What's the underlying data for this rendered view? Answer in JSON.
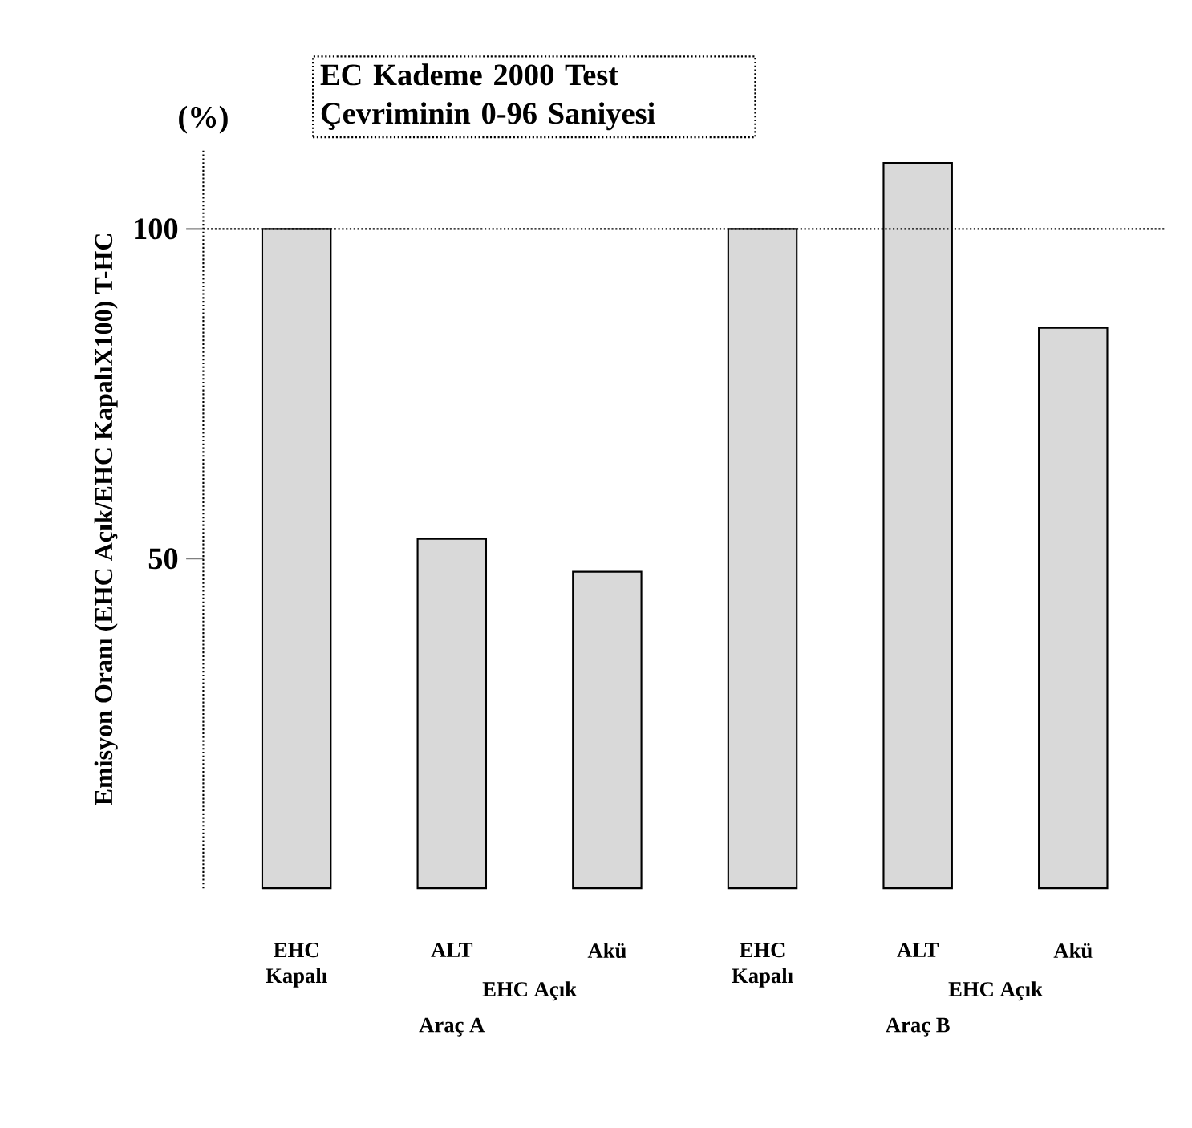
{
  "chart_data": {
    "type": "bar",
    "title": "EC Kademe 2000 Test Çevriminin 0-96 Saniyesi",
    "ylabel": "Emisyon Oranı (EHC Açık/EHC KapalıX100) T-HC",
    "categories": [
      "EHC Kapalı",
      "ALT",
      "Akü",
      "EHC Kapalı",
      "ALT",
      "Akü"
    ],
    "values": [
      100,
      53,
      48,
      100,
      110,
      85
    ],
    "color": "#d9d9d9",
    "ylim": [
      0,
      112
    ],
    "yticks": [
      50,
      100
    ],
    "ref_lines": [
      {
        "axis": "y",
        "value": 100,
        "line_style": "dotted"
      }
    ],
    "annotations": [
      "(%)",
      "EHC Açık",
      "EHC Açık",
      "Araç A",
      "Araç B"
    ],
    "grid": false
  }
}
